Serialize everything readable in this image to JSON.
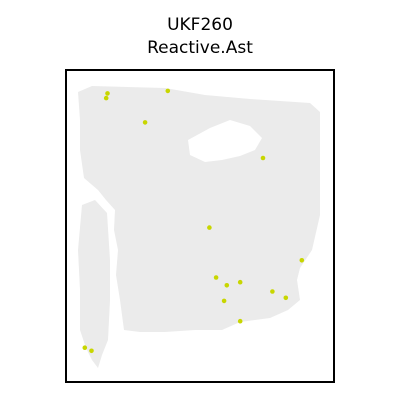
{
  "chart_data": {
    "type": "scatter",
    "title": "UKF260",
    "subtitle": "Reactive.Ast",
    "xlabel": "",
    "ylabel": "",
    "grid": false,
    "colors": {
      "tissue": "#ebebeb",
      "highlight": "#c8d600",
      "frame": "#000000"
    },
    "series": [
      {
        "points": [
          [
            0.15,
            0.91
          ],
          [
            0.155,
            0.925
          ],
          [
            0.38,
            0.933
          ],
          [
            0.295,
            0.832
          ],
          [
            0.735,
            0.718
          ],
          [
            0.535,
            0.495
          ],
          [
            0.88,
            0.39
          ],
          [
            0.56,
            0.335
          ],
          [
            0.6,
            0.31
          ],
          [
            0.65,
            0.32
          ],
          [
            0.77,
            0.29
          ],
          [
            0.82,
            0.27
          ],
          [
            0.59,
            0.26
          ],
          [
            0.65,
            0.195
          ],
          [
            0.07,
            0.11
          ],
          [
            0.095,
            0.1
          ]
        ]
      }
    ]
  }
}
